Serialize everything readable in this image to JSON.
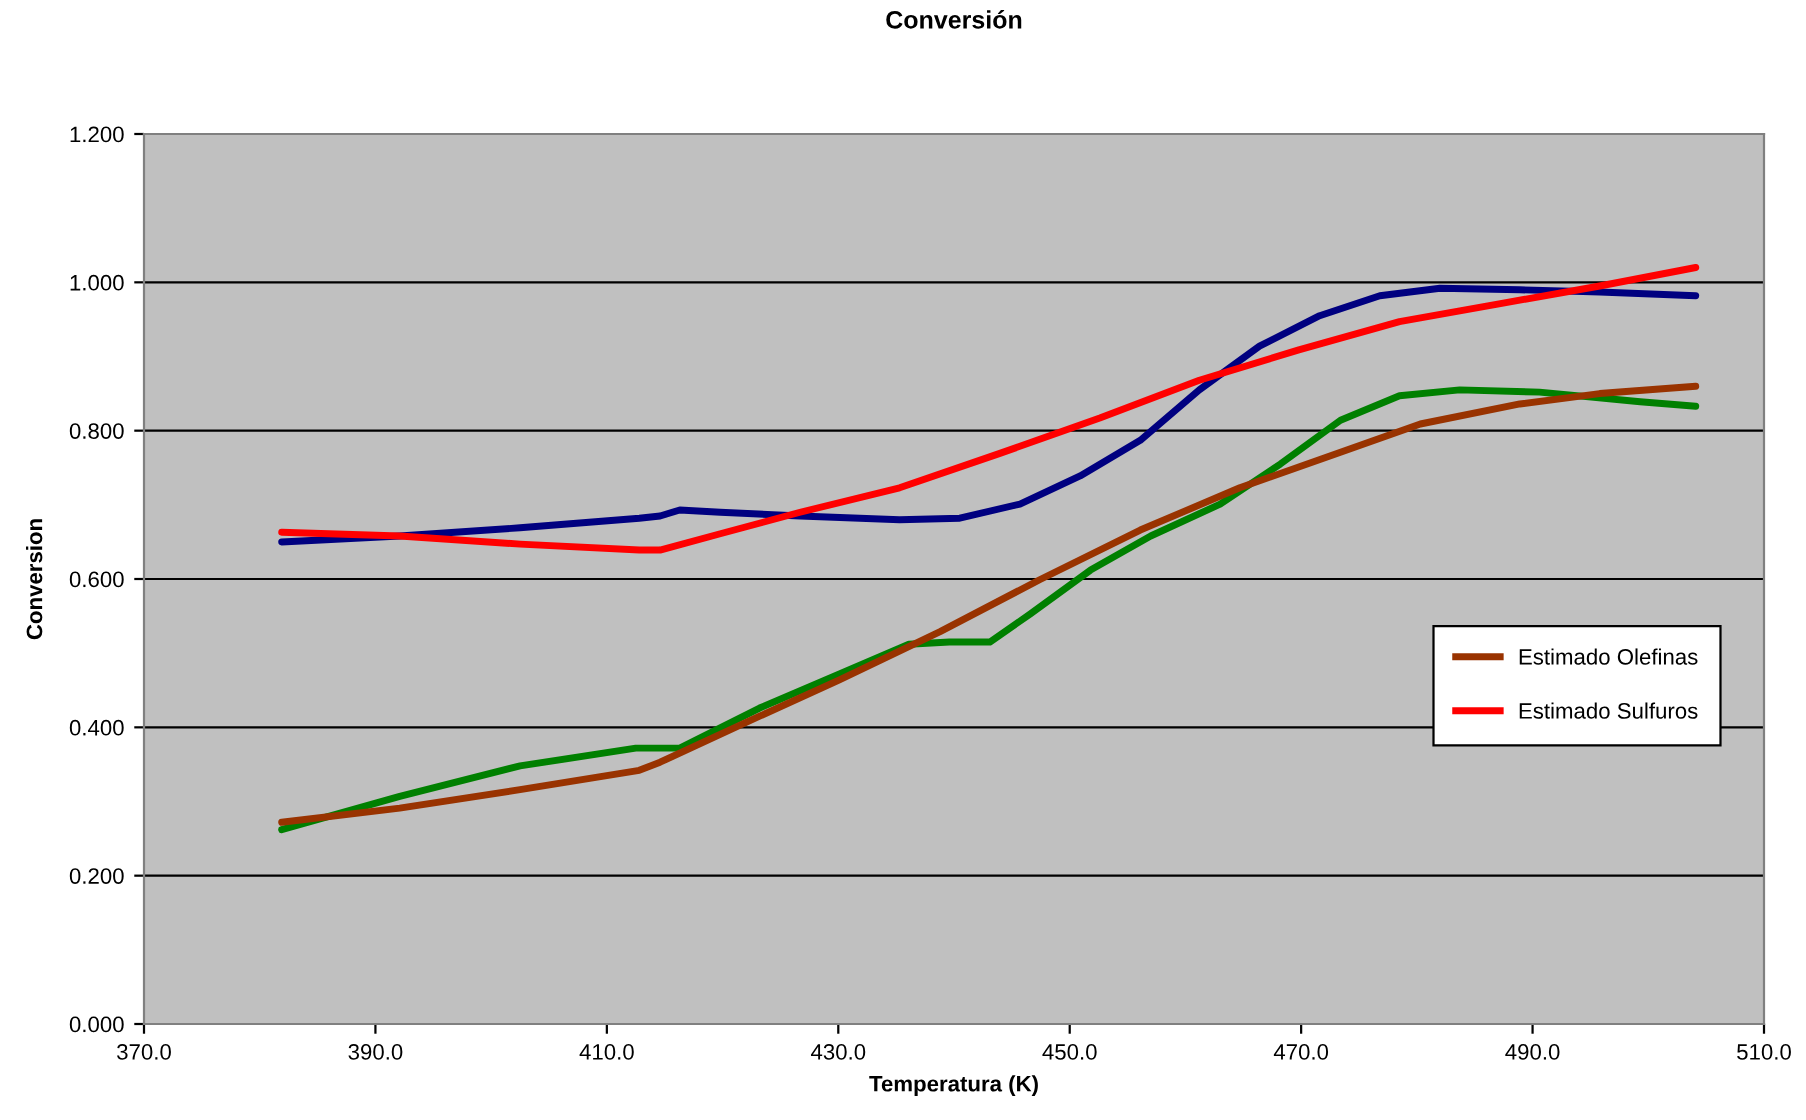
{
  "chart_data": {
    "type": "line",
    "title": "Conversión",
    "xlabel": "Temperatura (K)",
    "ylabel": "Conversion",
    "xlim": [
      370,
      510
    ],
    "xticks": [
      {
        "value": 370,
        "label": "370.0"
      },
      {
        "value": 390,
        "label": "390.0"
      },
      {
        "value": 410,
        "label": "410.0"
      },
      {
        "value": 430,
        "label": "430.0"
      },
      {
        "value": 450,
        "label": "450.0"
      },
      {
        "value": 470,
        "label": "470.0"
      },
      {
        "value": 490,
        "label": "490.0"
      },
      {
        "value": 510,
        "label": "510.0"
      }
    ],
    "ylim": [
      0,
      1.2
    ],
    "yticks": [
      {
        "value": 0,
        "label": "0.000"
      },
      {
        "value": 0.2,
        "label": "0.200"
      },
      {
        "value": 0.4,
        "label": "0.400"
      },
      {
        "value": 0.6,
        "label": "0.600"
      },
      {
        "value": 0.8,
        "label": "0.800"
      },
      {
        "value": 1.0,
        "label": "1.000"
      },
      {
        "value": 1.2,
        "label": "1.200"
      }
    ],
    "grid": "y",
    "legend": "right",
    "marker": "none",
    "line_style": "solid",
    "series": [
      {
        "color": "#008000",
        "x": [
          381.9,
          392.1,
          402.5,
          412.5,
          416.3,
          423.2,
          430.1,
          436.1,
          439.6,
          443.1,
          446.6,
          451.8,
          457.0,
          463.0,
          468.2,
          473.4,
          478.5,
          483.7,
          490.6,
          499.3,
          504.1
        ],
        "values": [
          0.262,
          0.307,
          0.348,
          0.372,
          0.372,
          0.426,
          0.472,
          0.512,
          0.515,
          0.515,
          0.553,
          0.612,
          0.658,
          0.701,
          0.755,
          0.814,
          0.847,
          0.855,
          0.852,
          0.839,
          0.833
        ]
      },
      {
        "name": "Estimado Olefinas",
        "color": "#993300",
        "x": [
          381.9,
          392.1,
          402.5,
          412.8,
          414.6,
          423.2,
          430.1,
          438.8,
          447.4,
          456.1,
          464.7,
          473.4,
          480.3,
          488.9,
          495.8,
          504.1
        ],
        "values": [
          0.272,
          0.291,
          0.316,
          0.342,
          0.353,
          0.415,
          0.464,
          0.529,
          0.599,
          0.666,
          0.723,
          0.771,
          0.809,
          0.836,
          0.85,
          0.86
        ]
      },
      {
        "color": "#000080",
        "x": [
          381.9,
          392.1,
          402.5,
          412.8,
          414.6,
          416.3,
          419.8,
          426.7,
          435.3,
          440.5,
          445.7,
          450.9,
          456.1,
          461.2,
          466.4,
          471.6,
          476.8,
          482.0,
          488.9,
          495.8,
          504.1
        ],
        "values": [
          0.65,
          0.658,
          0.669,
          0.682,
          0.685,
          0.693,
          0.69,
          0.685,
          0.68,
          0.682,
          0.701,
          0.739,
          0.787,
          0.855,
          0.914,
          0.955,
          0.982,
          0.992,
          0.99,
          0.987,
          0.982
        ]
      },
      {
        "name": "Estimado Sulfuros",
        "color": "#ff0000",
        "x": [
          381.9,
          392.1,
          402.5,
          412.8,
          414.6,
          419.8,
          426.7,
          435.3,
          443.9,
          452.6,
          461.2,
          469.8,
          478.5,
          487.1,
          495.8,
          504.1
        ],
        "values": [
          0.663,
          0.658,
          0.647,
          0.639,
          0.639,
          0.661,
          0.69,
          0.723,
          0.769,
          0.817,
          0.868,
          0.909,
          0.947,
          0.971,
          0.995,
          1.02
        ]
      }
    ]
  }
}
